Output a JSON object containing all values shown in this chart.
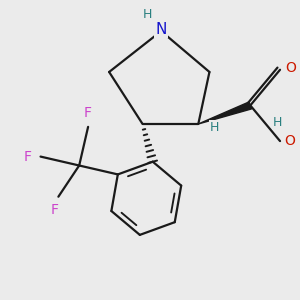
{
  "background_color": "#ebebeb",
  "bond_color": "#1a1a1a",
  "N_color": "#1414cc",
  "O_color": "#cc1a00",
  "F_color": "#cc44cc",
  "H_color": "#2a8080",
  "figsize": [
    3.0,
    3.0
  ],
  "dpi": 100,
  "xlim": [
    -1.8,
    2.2
  ],
  "ylim": [
    -2.6,
    1.4
  ]
}
